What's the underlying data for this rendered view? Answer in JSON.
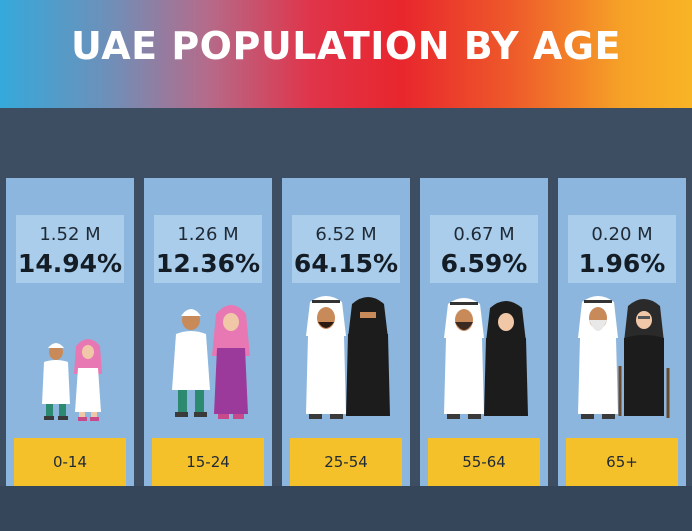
{
  "title": "UAE POPULATION BY AGE",
  "colors": {
    "background": "#3d4e63",
    "card": "#8cb6dd",
    "stat_box": "#a9cdea",
    "age_box": "#f5c12a",
    "banner_gradient": [
      "#35a9db",
      "#e8262d",
      "#f9b426"
    ]
  },
  "chart_data": {
    "type": "table",
    "title": "UAE POPULATION BY AGE",
    "categories": [
      "0-14",
      "15-24",
      "25-54",
      "55-64",
      "65+"
    ],
    "series": [
      {
        "values_label": [
          "1.52 M",
          "1.26 M",
          "6.52 M",
          "0.67 M",
          "0.20 M"
        ],
        "values": [
          1.52,
          1.26,
          6.52,
          0.67,
          0.2
        ]
      },
      {
        "values_label": [
          "14.94%",
          "12.36%",
          "64.15%",
          "6.59%",
          "1.96%"
        ],
        "values": [
          14.94,
          12.36,
          64.15,
          6.59,
          1.96
        ]
      }
    ]
  },
  "groups": [
    {
      "count": "1.52 M",
      "percent": "14.94%",
      "age": "0-14",
      "figures": "children-icon"
    },
    {
      "count": "1.26 M",
      "percent": "12.36%",
      "age": "15-24",
      "figures": "youth-icon"
    },
    {
      "count": "6.52 M",
      "percent": "64.15%",
      "age": "25-54",
      "figures": "adults-icon"
    },
    {
      "count": "0.67 M",
      "percent": "6.59%",
      "age": "55-64",
      "figures": "middle-aged-icon"
    },
    {
      "count": "0.20 M",
      "percent": "1.96%",
      "age": "65+",
      "figures": "elderly-icon"
    }
  ]
}
